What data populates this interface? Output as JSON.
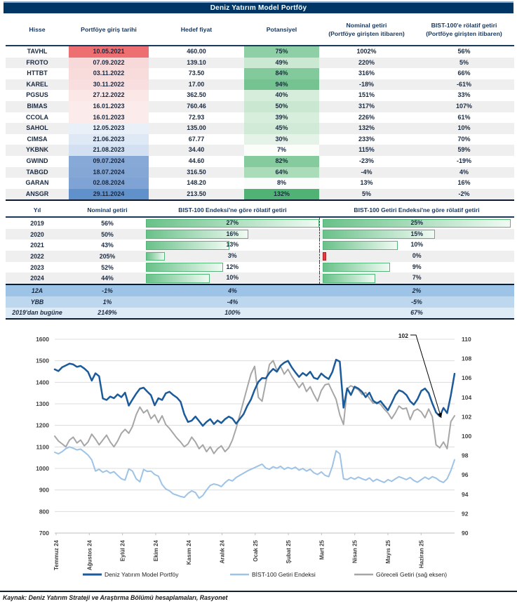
{
  "title": "Deniz Yatırım Model Portföy",
  "colors": {
    "navy": "#003666",
    "header_text": "#17375e",
    "bar_green_border": "#54b679",
    "neg_red": "#e83a3c",
    "grid": "#dcdcdc"
  },
  "table1": {
    "headers": [
      "Hisse",
      "Portföye giriş tarihi",
      "Hedef fiyat",
      "Potansiyel",
      "Nominal getiri\n(Portföye girişten itibaren)",
      "BIST-100'e rölatif getiri\n(Portföye girişten itibaren)"
    ],
    "rows": [
      {
        "hisse": "TAVHL",
        "giris": "10.05.2021",
        "giris_bg": "#ee6f71",
        "hedef": "460.00",
        "potansiyel": "75%",
        "pot_bg": "#8ecfa5",
        "nominal": "1002%",
        "rolatif": "56%"
      },
      {
        "hisse": "FROTO",
        "giris": "07.09.2022",
        "giris_bg": "#f7d9da",
        "hedef": "139.10",
        "potansiyel": "49%",
        "pot_bg": "#cbe8d3",
        "nominal": "220%",
        "rolatif": "5%"
      },
      {
        "hisse": "HTTBT",
        "giris": "03.11.2022",
        "giris_bg": "#f8dcdc",
        "hedef": "73.50",
        "potansiyel": "84%",
        "pot_bg": "#82ca9b",
        "nominal": "316%",
        "rolatif": "66%"
      },
      {
        "hisse": "KAREL",
        "giris": "30.11.2022",
        "giris_bg": "#f8dede",
        "hedef": "17.00",
        "potansiyel": "94%",
        "pot_bg": "#75c391",
        "nominal": "-18%",
        "rolatif": "-61%"
      },
      {
        "hisse": "PGSUS",
        "giris": "27.12.2022",
        "giris_bg": "#fae7e6",
        "hedef": "362.50",
        "potansiyel": "40%",
        "pot_bg": "#d7eddc",
        "nominal": "151%",
        "rolatif": "33%"
      },
      {
        "hisse": "BIMAS",
        "giris": "16.01.2023",
        "giris_bg": "#fbebea",
        "hedef": "760.46",
        "potansiyel": "50%",
        "pot_bg": "#c9e7d1",
        "nominal": "317%",
        "rolatif": "107%"
      },
      {
        "hisse": "CCOLA",
        "giris": "16.01.2023",
        "giris_bg": "#fbebea",
        "hedef": "72.93",
        "potansiyel": "39%",
        "pot_bg": "#d8eedd",
        "nominal": "226%",
        "rolatif": "61%"
      },
      {
        "hisse": "SAHOL",
        "giris": "12.05.2023",
        "giris_bg": "#eaf0f8",
        "hedef": "135.00",
        "potansiyel": "45%",
        "pot_bg": "#d1ead7",
        "nominal": "132%",
        "rolatif": "10%"
      },
      {
        "hisse": "CIMSA",
        "giris": "21.06.2023",
        "giris_bg": "#dfe9f5",
        "hedef": "67.77",
        "potansiyel": "30%",
        "pot_bg": "#e4f2e7",
        "nominal": "233%",
        "rolatif": "70%"
      },
      {
        "hisse": "YKBNK",
        "giris": "21.08.2023",
        "giris_bg": "#d2e0f1",
        "hedef": "34.40",
        "potansiyel": "7%",
        "pot_bg": "#fbfdfb",
        "nominal": "115%",
        "rolatif": "59%"
      },
      {
        "hisse": "GWIND",
        "giris": "09.07.2024",
        "giris_bg": "#87a9d7",
        "hedef": "44.60",
        "potansiyel": "82%",
        "pot_bg": "#85cb9d",
        "nominal": "-23%",
        "rolatif": "-19%"
      },
      {
        "hisse": "TABGD",
        "giris": "18.07.2024",
        "giris_bg": "#84a7d6",
        "hedef": "316.50",
        "potansiyel": "64%",
        "pot_bg": "#abdcba",
        "nominal": "-4%",
        "rolatif": "4%"
      },
      {
        "hisse": "GARAN",
        "giris": "02.08.2024",
        "giris_bg": "#7fa3d4",
        "hedef": "148.20",
        "potansiyel": "8%",
        "pot_bg": "#fafcfb",
        "nominal": "13%",
        "rolatif": "16%"
      },
      {
        "hisse": "ANSGR",
        "giris": "29.11.2024",
        "giris_bg": "#6191cb",
        "hedef": "213.50",
        "potansiyel": "132%",
        "pot_bg": "#50b375",
        "nominal": "5%",
        "rolatif": "-2%"
      }
    ]
  },
  "table2": {
    "headers": [
      "Yıl",
      "Nominal getiri",
      "BIST-100 Endeksi'ne göre rölatif getiri",
      "BIST-100 Getiri Endeksi'ne göre rölatif getiri"
    ],
    "years": [
      {
        "yil": "2019",
        "nominal": "56%",
        "bist": "27%",
        "bist_frac": 1.0,
        "getiri": "25%",
        "getiri_frac": 1.0,
        "getiri_neg": false
      },
      {
        "yil": "2020",
        "nominal": "50%",
        "bist": "16%",
        "bist_frac": 0.593,
        "getiri": "15%",
        "getiri_frac": 0.6,
        "getiri_neg": false
      },
      {
        "yil": "2021",
        "nominal": "43%",
        "bist": "13%",
        "bist_frac": 0.481,
        "getiri": "10%",
        "getiri_frac": 0.4,
        "getiri_neg": false
      },
      {
        "yil": "2022",
        "nominal": "205%",
        "bist": "3%",
        "bist_frac": 0.111,
        "getiri": "0%",
        "getiri_frac": 0,
        "getiri_neg": true
      },
      {
        "yil": "2023",
        "nominal": "52%",
        "bist": "12%",
        "bist_frac": 0.444,
        "getiri": "9%",
        "getiri_frac": 0.36,
        "getiri_neg": false
      },
      {
        "yil": "2024",
        "nominal": "44%",
        "bist": "10%",
        "bist_frac": 0.37,
        "getiri": "7%",
        "getiri_frac": 0.28,
        "getiri_neg": false
      }
    ],
    "summary": [
      {
        "label": "12A",
        "nominal": "-1%",
        "bist": "4%",
        "getiri": "2%",
        "bg": "#9dc3e6"
      },
      {
        "label": "YBB",
        "nominal": "1%",
        "bist": "-4%",
        "getiri": "-5%",
        "bg": "#bdd7ee"
      },
      {
        "label": "2019'dan bugüne",
        "nominal": "2149%",
        "bist": "100%",
        "getiri": "67%",
        "bg": "#ddebf7"
      }
    ]
  },
  "chart_data": {
    "type": "line",
    "left_axis": {
      "min": 700,
      "max": 1600,
      "step": 100
    },
    "right_axis": {
      "min": 90,
      "max": 110,
      "step": 2
    },
    "x_labels": [
      "Temmuz 24",
      "Ağustos 24",
      "Eylül 24",
      "Ekim 24",
      "Kasım 24",
      "Aralık 24",
      "Ocak 25",
      "Şubat 25",
      "Mart 25",
      "Nisan 25",
      "Mayıs 25",
      "Haziran 25"
    ],
    "grid": true,
    "legend_position": "bottom",
    "annotation": {
      "text": "102"
    },
    "series": [
      {
        "name": "BİST-100 Getiri Endeksi",
        "axis": "left",
        "color": "#9dc3e6",
        "width": 2,
        "values": [
          1075,
          1068,
          1078,
          1092,
          1100,
          1094,
          1086,
          1090,
          1077,
          1062,
          1040,
          988,
          996,
          982,
          990,
          978,
          985,
          968,
          952,
          946,
          998,
          988,
          952,
          938,
          995,
          986,
          988,
          972,
          964,
          925,
          905,
          896,
          882,
          876,
          870,
          866,
          884,
          896,
          888,
          862,
          874,
          900,
          921,
          928,
          924,
          916,
          934,
          948,
          942,
          958,
          968,
          978,
          988,
          996,
          1004,
          1012,
          1020,
          1002,
          996,
          1008,
          1001,
          1010,
          996,
          1005,
          998,
          1006,
          992,
          1000,
          988,
          996,
          980,
          972,
          984,
          968,
          962,
          1010,
          1082,
          1068,
          952,
          948,
          958,
          950,
          960,
          952,
          946,
          956,
          940,
          950,
          942,
          935,
          948,
          940,
          952,
          962,
          955,
          948,
          958,
          944,
          936,
          948,
          960,
          950,
          962,
          955,
          942,
          935,
          952,
          990,
          1040
        ]
      },
      {
        "name": "Göreceli Getiri (sağ eksen)",
        "axis": "right",
        "color": "#a6a6a6",
        "width": 2,
        "values": [
          100.0,
          99.5,
          99.2,
          98.9,
          99.6,
          99.9,
          99.3,
          99.6,
          99.0,
          99.4,
          100.2,
          99.7,
          99.1,
          99.6,
          100.1,
          99.4,
          98.9,
          99.5,
          100.3,
          100.7,
          100.3,
          101.0,
          102.2,
          103.0,
          102.4,
          102.7,
          101.8,
          102.2,
          101.4,
          102.1,
          101.2,
          100.8,
          100.3,
          99.8,
          99.4,
          98.9,
          99.2,
          99.9,
          99.4,
          98.7,
          99.1,
          98.4,
          98.9,
          98.2,
          98.7,
          99.0,
          98.4,
          98.8,
          99.6,
          100.8,
          102.2,
          103.6,
          105.0,
          106.4,
          107.2,
          104.0,
          103.6,
          105.5,
          107.4,
          107.8,
          106.8,
          107.2,
          106.4,
          106.9,
          106.2,
          105.6,
          105.0,
          105.5,
          104.6,
          105.1,
          104.3,
          103.6,
          104.7,
          105.3,
          105.4,
          104.6,
          103.8,
          102.2,
          101.2,
          104.9,
          105.2,
          105.0,
          104.8,
          104.3,
          104.5,
          103.9,
          103.4,
          103.5,
          103.3,
          102.8,
          102.4,
          101.8,
          102.4,
          103.1,
          102.8,
          102.9,
          101.7,
          102.6,
          102.8,
          102.5,
          101.9,
          102.8,
          102.0,
          99.1,
          98.8,
          99.4,
          98.7,
          101.5,
          102.1
        ]
      },
      {
        "name": "Deniz Yatırım Model Portföy",
        "axis": "left",
        "color": "#1b5a9b",
        "width": 2.5,
        "values": [
          1460,
          1452,
          1470,
          1478,
          1487,
          1483,
          1472,
          1476,
          1464,
          1448,
          1408,
          1442,
          1428,
          1325,
          1318,
          1334,
          1326,
          1344,
          1331,
          1352,
          1292,
          1320,
          1347,
          1370,
          1375,
          1357,
          1340,
          1293,
          1326,
          1318,
          1349,
          1356,
          1341,
          1329,
          1310,
          1252,
          1216,
          1222,
          1241,
          1220,
          1198,
          1216,
          1229,
          1206,
          1223,
          1211,
          1229,
          1241,
          1232,
          1208,
          1230,
          1252,
          1290,
          1320,
          1365,
          1402,
          1420,
          1418,
          1444,
          1462,
          1449,
          1477,
          1491,
          1500,
          1470,
          1446,
          1425,
          1443,
          1431,
          1449,
          1421,
          1415,
          1441,
          1426,
          1415,
          1448,
          1505,
          1496,
          1282,
          1372,
          1341,
          1380,
          1371,
          1356,
          1331,
          1352,
          1315,
          1302,
          1313,
          1291,
          1270,
          1304,
          1341,
          1363,
          1356,
          1341,
          1312,
          1296,
          1322,
          1360,
          1371,
          1350,
          1302,
          1260,
          1242,
          1281,
          1257,
          1340,
          1440
        ]
      }
    ]
  },
  "footer": "Kaynak: Deniz Yatırım Strateji ve Araştırma Bölümü hesaplamaları, Rasyonet"
}
